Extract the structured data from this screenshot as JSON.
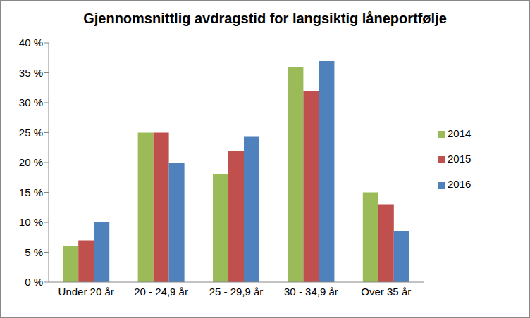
{
  "chart_data": {
    "type": "bar",
    "title": "Gjennomsnittlig avdragstid for langsiktig låneportfølje",
    "categories": [
      "Under 20 år",
      "20 - 24,9 år",
      "25 - 29,9 år",
      "30 - 34,9 år",
      "Over 35 år"
    ],
    "series": [
      {
        "name": "2014",
        "color": "#9bbb59",
        "values": [
          6,
          25,
          18,
          36,
          15
        ]
      },
      {
        "name": "2015",
        "color": "#c0504d",
        "values": [
          7,
          25,
          22,
          32,
          13
        ]
      },
      {
        "name": "2016",
        "color": "#4f81bd",
        "values": [
          10,
          20,
          24.3,
          37,
          8.5
        ]
      }
    ],
    "ylim": [
      0,
      40
    ],
    "yticks": [
      {
        "value": 0,
        "label": "0 %"
      },
      {
        "value": 5,
        "label": "5 %"
      },
      {
        "value": 10,
        "label": "10 %"
      },
      {
        "value": 15,
        "label": "15 %"
      },
      {
        "value": 20,
        "label": "20 %"
      },
      {
        "value": 25,
        "label": "25 %"
      },
      {
        "value": 30,
        "label": "30 %"
      },
      {
        "value": 35,
        "label": "35 %"
      },
      {
        "value": 40,
        "label": "40 %"
      }
    ],
    "grid": false,
    "legend": "right"
  }
}
